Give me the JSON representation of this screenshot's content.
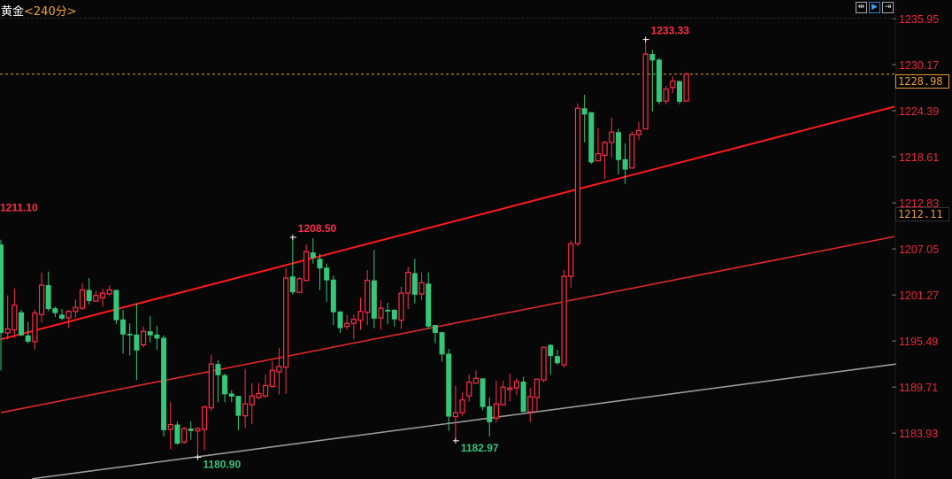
{
  "header": {
    "symbol": "黄金",
    "period": "<240分>"
  },
  "toolbar": [
    {
      "icon": "fit-range-icon",
      "glyph": "⇹"
    },
    {
      "icon": "play-icon",
      "glyph": "▶",
      "active": true
    },
    {
      "icon": "shift-right-icon",
      "glyph": "⇥"
    }
  ],
  "colors": {
    "up": "#ff2d4a",
    "down": "#35c67a",
    "upper_line": "#ff1a1a",
    "mid_line": "#e02828",
    "lower_line": "#9a9a9a",
    "current_price_line": "#f0a030",
    "axis_text": "#e8283c"
  },
  "price_box": {
    "current": "1228.98",
    "cursor": "1212.11"
  },
  "chart_data": {
    "type": "candlestick",
    "ylim": [
      1180.5,
      1237.5
    ],
    "yticks": [
      "1235.95",
      "1230.17",
      "1224.39",
      "1218.61",
      "1212.83",
      "1207.05",
      "1201.27",
      "1195.49",
      "1189.71",
      "1183.93"
    ],
    "current_price": 1228.98,
    "candles_ohlc": [
      [
        1207.6,
        1208.2,
        1191.8,
        1196.5
      ],
      [
        1196.5,
        1201.2,
        1195.7,
        1197.0
      ],
      [
        1196.9,
        1202.1,
        1195.9,
        1200.0
      ],
      [
        1199.1,
        1199.4,
        1196.1,
        1196.2
      ],
      [
        1196.2,
        1197.9,
        1195.2,
        1195.4
      ],
      [
        1195.4,
        1199.4,
        1194.4,
        1199.0
      ],
      [
        1198.8,
        1204.1,
        1197.8,
        1202.5
      ],
      [
        1202.5,
        1204.2,
        1199.2,
        1199.5
      ],
      [
        1199.6,
        1199.8,
        1198.5,
        1199.0
      ],
      [
        1198.8,
        1199.5,
        1198.1,
        1198.3
      ],
      [
        1198.4,
        1199.4,
        1197.1,
        1199.2
      ],
      [
        1199.2,
        1200.7,
        1198.4,
        1199.7
      ],
      [
        1199.6,
        1202.7,
        1199.4,
        1201.9
      ],
      [
        1201.9,
        1203.4,
        1200.1,
        1200.5
      ],
      [
        1200.5,
        1201.8,
        1200.4,
        1201.2
      ],
      [
        1200.9,
        1202.1,
        1199.8,
        1201.5
      ],
      [
        1201.4,
        1202.5,
        1201.2,
        1201.9
      ],
      [
        1201.9,
        1201.9,
        1197.6,
        1198.1
      ],
      [
        1198.2,
        1199.4,
        1193.9,
        1196.3
      ],
      [
        1196.4,
        1197.7,
        1193.7,
        1196.2
      ],
      [
        1196.3,
        1200.2,
        1190.6,
        1194.3
      ],
      [
        1195.0,
        1197.3,
        1194.7,
        1196.7
      ],
      [
        1196.7,
        1198.6,
        1195.3,
        1196.2
      ],
      [
        1196.3,
        1197.4,
        1194.4,
        1195.8
      ],
      [
        1195.9,
        1196.2,
        1183.5,
        1184.3
      ],
      [
        1184.4,
        1187.8,
        1181.9,
        1185.0
      ],
      [
        1185.0,
        1185.4,
        1182.5,
        1182.6
      ],
      [
        1182.8,
        1184.7,
        1182.6,
        1184.5
      ],
      [
        1184.5,
        1185.4,
        1183.1,
        1184.2
      ],
      [
        1184.2,
        1184.7,
        1180.9,
        1184.5
      ],
      [
        1184.4,
        1187.4,
        1181.8,
        1187.2
      ],
      [
        1187.1,
        1193.8,
        1186.7,
        1192.6
      ],
      [
        1192.6,
        1193.1,
        1187.8,
        1191.2
      ],
      [
        1191.2,
        1191.4,
        1187.8,
        1188.8
      ],
      [
        1188.9,
        1189.3,
        1187.8,
        1188.5
      ],
      [
        1188.6,
        1188.6,
        1184.3,
        1186.1
      ],
      [
        1186.1,
        1192.0,
        1184.6,
        1187.6
      ],
      [
        1187.5,
        1190.2,
        1185.1,
        1188.6
      ],
      [
        1188.4,
        1190.2,
        1188.2,
        1188.9
      ],
      [
        1188.6,
        1191.3,
        1188.3,
        1189.9
      ],
      [
        1189.8,
        1193.0,
        1189.6,
        1191.8
      ],
      [
        1191.6,
        1194.6,
        1188.8,
        1192.3
      ],
      [
        1192.2,
        1204.6,
        1188.9,
        1203.4
      ],
      [
        1203.6,
        1208.5,
        1201.3,
        1201.6
      ],
      [
        1201.6,
        1203.5,
        1201.5,
        1203.3
      ],
      [
        1203.1,
        1207.6,
        1203.0,
        1206.7
      ],
      [
        1206.6,
        1208.4,
        1205.2,
        1205.9
      ],
      [
        1205.8,
        1206.4,
        1201.9,
        1204.6
      ],
      [
        1204.7,
        1205.2,
        1200.4,
        1203.1
      ],
      [
        1203.2,
        1203.7,
        1197.5,
        1199.1
      ],
      [
        1199.2,
        1199.2,
        1196.5,
        1197.1
      ],
      [
        1197.3,
        1198.8,
        1196.9,
        1197.7
      ],
      [
        1197.7,
        1198.8,
        1195.7,
        1198.2
      ],
      [
        1198.1,
        1200.9,
        1196.9,
        1199.2
      ],
      [
        1199.1,
        1204.4,
        1197.5,
        1203.1
      ],
      [
        1203.1,
        1206.9,
        1197.1,
        1198.3
      ],
      [
        1198.4,
        1200.6,
        1196.9,
        1199.6
      ],
      [
        1199.4,
        1200.3,
        1197.6,
        1199.2
      ],
      [
        1199.4,
        1199.5,
        1197.3,
        1198.2
      ],
      [
        1198.1,
        1202.3,
        1197.0,
        1201.5
      ],
      [
        1201.5,
        1204.8,
        1199.5,
        1204.1
      ],
      [
        1204.0,
        1205.8,
        1200.2,
        1201.3
      ],
      [
        1201.4,
        1204.1,
        1200.6,
        1202.8
      ],
      [
        1202.7,
        1204.1,
        1197.0,
        1197.3
      ],
      [
        1197.5,
        1197.5,
        1195.2,
        1196.5
      ],
      [
        1196.6,
        1196.6,
        1192.9,
        1193.8
      ],
      [
        1193.9,
        1194.5,
        1184.2,
        1186.0
      ],
      [
        1186.0,
        1189.9,
        1183.0,
        1186.5
      ],
      [
        1186.5,
        1189.0,
        1186.1,
        1188.1
      ],
      [
        1188.6,
        1191.3,
        1187.9,
        1190.3
      ],
      [
        1190.2,
        1191.8,
        1190.2,
        1190.8
      ],
      [
        1190.8,
        1190.8,
        1186.8,
        1187.2
      ],
      [
        1187.3,
        1188.4,
        1183.5,
        1185.3
      ],
      [
        1185.8,
        1190.5,
        1185.3,
        1187.6
      ],
      [
        1187.5,
        1190.5,
        1187.4,
        1189.7
      ],
      [
        1189.4,
        1191.4,
        1187.9,
        1189.6
      ],
      [
        1189.6,
        1190.8,
        1188.7,
        1190.4
      ],
      [
        1190.4,
        1191.0,
        1186.6,
        1186.6
      ],
      [
        1186.6,
        1189.6,
        1185.3,
        1188.5
      ],
      [
        1188.4,
        1190.7,
        1186.6,
        1190.7
      ],
      [
        1190.6,
        1194.8,
        1190.3,
        1194.7
      ],
      [
        1195.0,
        1195.1,
        1191.3,
        1193.6
      ],
      [
        1193.6,
        1194.4,
        1192.5,
        1192.7
      ],
      [
        1192.5,
        1204.4,
        1192.2,
        1203.6
      ],
      [
        1203.6,
        1208.1,
        1202.2,
        1207.7
      ],
      [
        1207.7,
        1225.3,
        1207.4,
        1224.7
      ],
      [
        1224.7,
        1226.4,
        1220.4,
        1223.9
      ],
      [
        1224.2,
        1224.2,
        1217.7,
        1217.9
      ],
      [
        1218.1,
        1222.2,
        1218.1,
        1219.0
      ],
      [
        1218.8,
        1220.6,
        1215.8,
        1220.4
      ],
      [
        1220.4,
        1223.5,
        1218.5,
        1221.7
      ],
      [
        1221.7,
        1222.1,
        1216.4,
        1218.2
      ],
      [
        1218.3,
        1220.3,
        1215.2,
        1217.0
      ],
      [
        1217.2,
        1221.8,
        1217.2,
        1221.4
      ],
      [
        1221.4,
        1223.0,
        1220.7,
        1221.9
      ],
      [
        1222.1,
        1233.33,
        1222.1,
        1231.5
      ],
      [
        1231.5,
        1232.0,
        1224.3,
        1230.7
      ],
      [
        1230.8,
        1231.0,
        1225.2,
        1225.5
      ],
      [
        1225.6,
        1227.5,
        1225.2,
        1227.1
      ],
      [
        1227.3,
        1228.7,
        1226.6,
        1228.1
      ],
      [
        1228.1,
        1228.2,
        1225.2,
        1225.5
      ],
      [
        1225.6,
        1229.2,
        1225.6,
        1228.98
      ]
    ],
    "trend_lines": [
      {
        "kind": "upper",
        "from": [
          0,
          1195.7
        ],
        "to": [
          131.7,
          1224.9
        ]
      },
      {
        "kind": "middle",
        "from": [
          0,
          1186.5
        ],
        "to": [
          131.7,
          1208.6
        ]
      },
      {
        "kind": "lower",
        "from": [
          4.6,
          1178.2
        ],
        "to": [
          131.9,
          1192.6
        ]
      }
    ],
    "annotations": [
      {
        "text": "1233.33",
        "index": 95,
        "value": 1233.33,
        "type": "high"
      },
      {
        "text": "1208.50",
        "index": 43,
        "value": 1208.5,
        "type": "high"
      },
      {
        "text": "1211.10",
        "index": 0,
        "value": 1211.1,
        "type": "high-offscreen"
      },
      {
        "text": "1180.90",
        "index": 29,
        "value": 1180.9,
        "type": "low"
      },
      {
        "text": "1182.97",
        "index": 67,
        "value": 1182.97,
        "type": "low"
      }
    ]
  }
}
